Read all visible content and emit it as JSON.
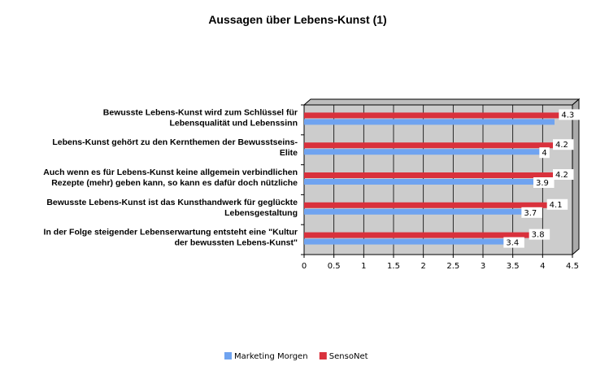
{
  "chart_data": {
    "type": "bar",
    "orientation": "horizontal",
    "title": "Aussagen über Lebens-Kunst (1)",
    "categories": [
      [
        "Bewusste Lebens-Kunst wird zum Schlüssel für",
        "Lebensqualität und Lebenssinn"
      ],
      [
        "Lebens-Kunst gehört zu den Kernthemen der Bewusstseins-",
        "Elite"
      ],
      [
        "Auch wenn es für Lebens-Kunst keine allgemein verbindlichen",
        "Rezepte (mehr) geben kann, so kann es dafür doch nützliche"
      ],
      [
        "Bewusste Lebens-Kunst ist das Kunsthandwerk für geglückte",
        "Lebensgestaltung"
      ],
      [
        "In der Folge steigender Lebenserwartung entsteht eine \"Kultur",
        "der bewussten Lebens-Kunst\""
      ]
    ],
    "series": [
      {
        "name": "Marketing Morgen",
        "color": "#6fa3f0",
        "values": [
          4.2,
          4.0,
          3.9,
          3.7,
          3.4
        ],
        "labels": [
          "",
          "4",
          "3.9",
          "3.7",
          "3.4"
        ]
      },
      {
        "name": "SensoNet",
        "color": "#d9313c",
        "values": [
          4.3,
          4.2,
          4.2,
          4.1,
          3.8
        ],
        "labels": [
          "4.3",
          "4.2",
          "4.2",
          "4.1",
          "3.8"
        ]
      }
    ],
    "xlim": [
      0,
      4.5
    ],
    "xticks": [
      "0",
      "0.5",
      "1",
      "1.5",
      "2",
      "2.5",
      "3",
      "3.5",
      "4",
      "4.5"
    ],
    "plot_background": "#cccccc",
    "grid": true,
    "legend_position": "bottom"
  }
}
